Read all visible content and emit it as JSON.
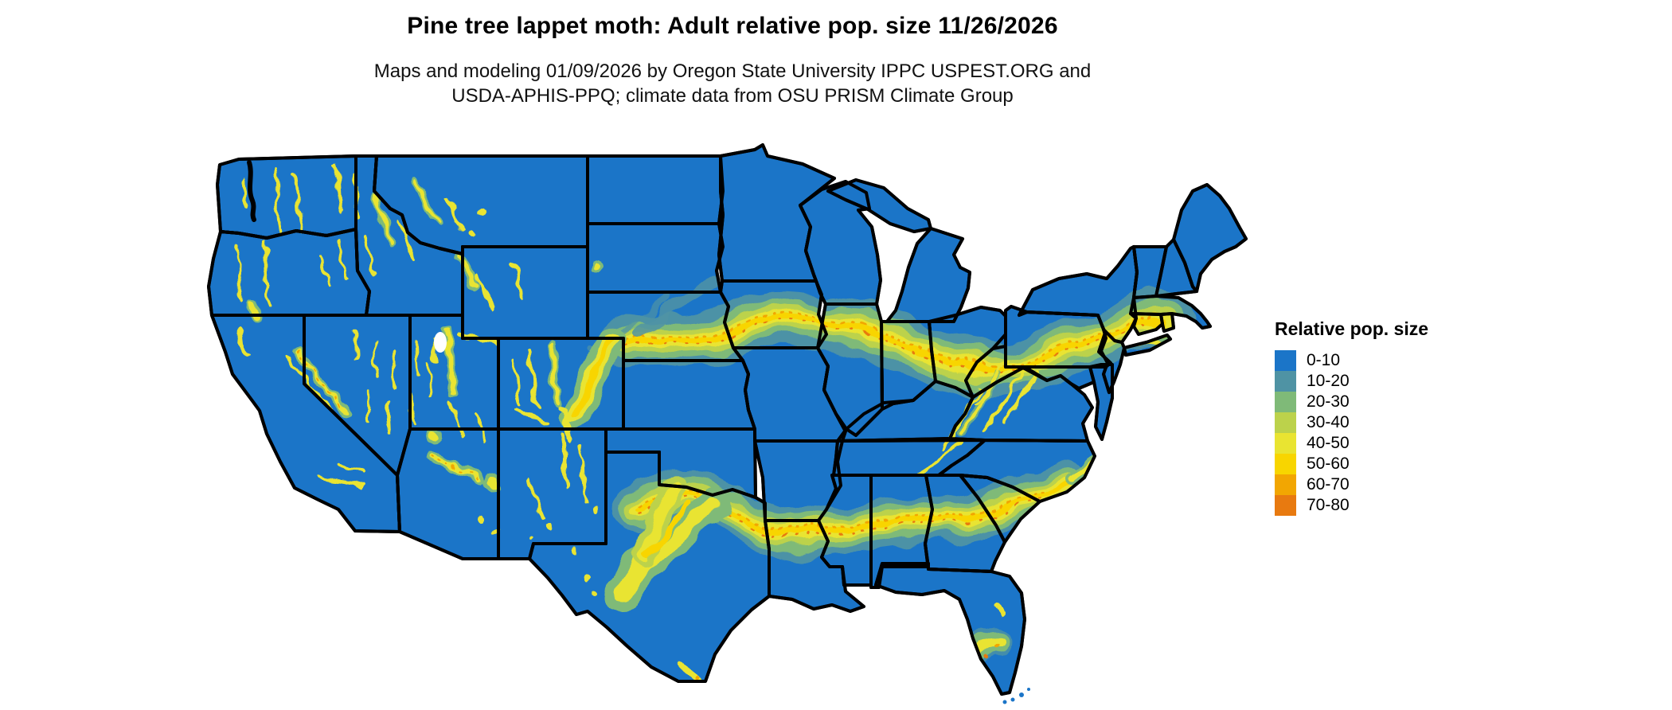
{
  "header": {
    "title": "Pine tree lappet moth: Adult relative pop. size 11/26/2026",
    "subtitle_line1": "Maps and modeling 01/09/2026 by Oregon State University IPPC USPEST.ORG and",
    "subtitle_line2": "USDA-APHIS-PPQ; climate data from OSU PRISM Climate Group"
  },
  "legend": {
    "title": "Relative pop. size",
    "items": [
      {
        "label": "0-10",
        "color": "#1b75c8"
      },
      {
        "label": "10-20",
        "color": "#4f93a4"
      },
      {
        "label": "20-30",
        "color": "#7fba78"
      },
      {
        "label": "30-40",
        "color": "#bcd24b"
      },
      {
        "label": "40-50",
        "color": "#e9e431"
      },
      {
        "label": "50-60",
        "color": "#f8d500"
      },
      {
        "label": "60-70",
        "color": "#f2a602"
      },
      {
        "label": "70-80",
        "color": "#e87a10"
      }
    ]
  }
}
